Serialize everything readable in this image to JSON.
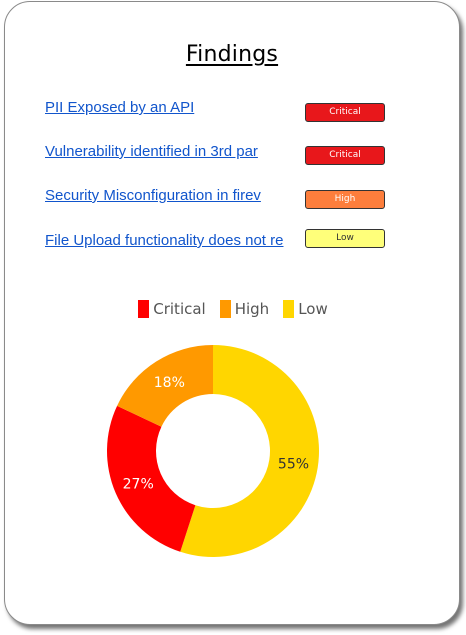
{
  "title": "Findings",
  "findings": [
    {
      "title": "PII Exposed by an API",
      "severity": "Critical",
      "color": "#e8171b",
      "text_color": "#ffffff"
    },
    {
      "title": "Vulnerability identified in 3rd par",
      "severity": "Critical",
      "color": "#e8171b",
      "text_color": "#ffffff"
    },
    {
      "title": "Security Misconfiguration in firev",
      "severity": "High",
      "color": "#fd7e3c",
      "text_color": "#ffffff"
    },
    {
      "title": "File Upload functionality does not re",
      "severity": "Low",
      "color": "#ffff7a",
      "text_color": "#333333"
    }
  ],
  "chart_data": {
    "type": "pie",
    "donut": true,
    "categories": [
      "Critical",
      "High",
      "Low"
    ],
    "values": [
      27,
      18,
      55
    ],
    "labels": [
      "27%",
      "18%",
      "55%"
    ],
    "colors": [
      "#ff0000",
      "#ff9900",
      "#ffd600"
    ],
    "label_colors": [
      "#ffffff",
      "#ffffff",
      "#333333"
    ],
    "legend_position": "top"
  }
}
